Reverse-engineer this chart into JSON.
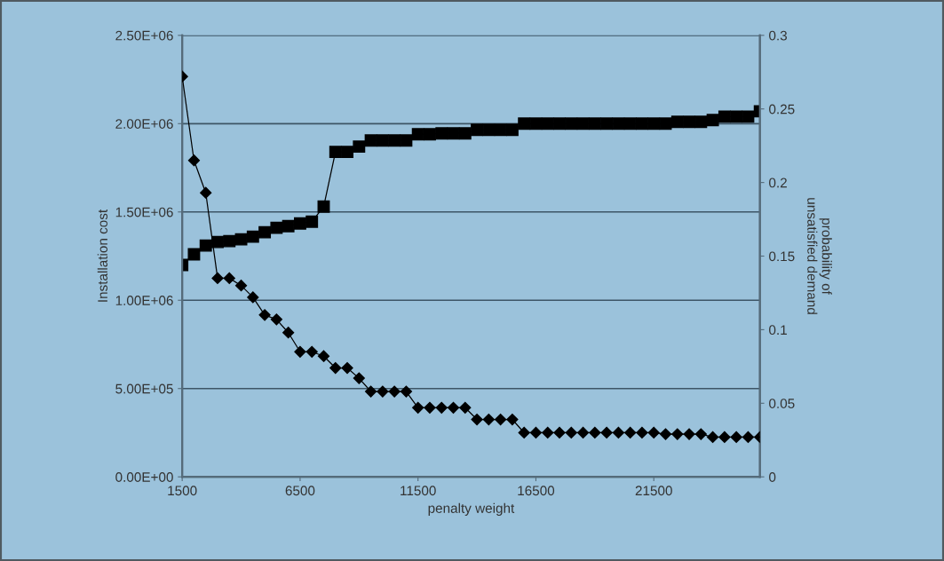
{
  "chart_data": {
    "type": "line",
    "xlabel": "penalty weight",
    "ylabel": "Installation cost",
    "y2label": "probability of\nunsatisfied demand",
    "x": [
      1500,
      2000,
      2500,
      3000,
      3500,
      4000,
      4500,
      5000,
      5500,
      6000,
      6500,
      7000,
      7500,
      8000,
      8500,
      9000,
      9500,
      10000,
      10500,
      11000,
      11500,
      12000,
      12500,
      13000,
      13500,
      14000,
      14500,
      15000,
      15500,
      16000,
      16500,
      17000,
      17500,
      18000,
      18500,
      19000,
      19500,
      20000,
      20500,
      21000,
      21500,
      22000,
      22500,
      23000,
      23500,
      24000,
      24500,
      25000,
      25500,
      26000
    ],
    "xlim": [
      1500,
      26000
    ],
    "xticks": [
      1500,
      6500,
      11500,
      16500,
      21500
    ],
    "ylim": [
      0,
      2500000
    ],
    "yticks": [
      {
        "value": 0,
        "label": "0.00E+00"
      },
      {
        "value": 500000,
        "label": "5.00E+05"
      },
      {
        "value": 1000000,
        "label": "1.00E+06"
      },
      {
        "value": 1500000,
        "label": "1.50E+06"
      },
      {
        "value": 2000000,
        "label": "2.00E+06"
      },
      {
        "value": 2500000,
        "label": "2.50E+06"
      }
    ],
    "y2lim": [
      0,
      0.3
    ],
    "y2ticks": [
      0,
      0.05,
      0.1,
      0.15,
      0.2,
      0.25,
      0.3
    ],
    "grid": "y",
    "legend": false,
    "line_style": "solid",
    "series": [
      {
        "color": "#000000",
        "marker": "square",
        "values": [
          1200000,
          1260000,
          1310000,
          1330000,
          1335000,
          1345000,
          1360000,
          1385000,
          1410000,
          1420000,
          1435000,
          1445000,
          1530000,
          1840000,
          1840000,
          1870000,
          1905000,
          1905000,
          1905000,
          1905000,
          1940000,
          1940000,
          1945000,
          1945000,
          1945000,
          1965000,
          1965000,
          1965000,
          1965000,
          2000000,
          2000000,
          2000000,
          2000000,
          2000000,
          2000000,
          2000000,
          2000000,
          2000000,
          2000000,
          2000000,
          2000000,
          2000000,
          2010000,
          2010000,
          2010000,
          2020000,
          2040000,
          2040000,
          2040000,
          2070000
        ]
      },
      {
        "color": "#000000",
        "marker": "diamond",
        "axis": "y2",
        "values": [
          0.272,
          0.215,
          0.193,
          0.135,
          0.135,
          0.13,
          0.122,
          0.11,
          0.107,
          0.098,
          0.085,
          0.085,
          0.082,
          0.074,
          0.074,
          0.067,
          0.058,
          0.058,
          0.058,
          0.058,
          0.047,
          0.047,
          0.047,
          0.047,
          0.047,
          0.039,
          0.039,
          0.039,
          0.039,
          0.03,
          0.03,
          0.03,
          0.03,
          0.03,
          0.03,
          0.03,
          0.03,
          0.03,
          0.03,
          0.03,
          0.03,
          0.029,
          0.029,
          0.029,
          0.029,
          0.027,
          0.027,
          0.027,
          0.027,
          0.027
        ]
      }
    ]
  }
}
